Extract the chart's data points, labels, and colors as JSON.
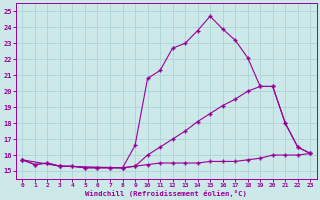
{
  "xlabel": "Windchill (Refroidissement éolien,°C)",
  "xlim": [
    -0.5,
    23.5
  ],
  "ylim": [
    14.5,
    25.5
  ],
  "xticks": [
    0,
    1,
    2,
    3,
    4,
    5,
    6,
    7,
    8,
    9,
    10,
    11,
    12,
    13,
    14,
    15,
    16,
    17,
    18,
    19,
    20,
    21,
    22,
    23
  ],
  "yticks": [
    15,
    16,
    17,
    18,
    19,
    20,
    21,
    22,
    23,
    24,
    25
  ],
  "bg_color": "#cce8e8",
  "line_color": "#990099",
  "grid_color": "#aad4d4",
  "line1_x": [
    0,
    1,
    2,
    3,
    4,
    5,
    6,
    7,
    8,
    9,
    10,
    11,
    12,
    13,
    14,
    15,
    16,
    17,
    18,
    19,
    20,
    21,
    22,
    23
  ],
  "line1_y": [
    15.7,
    15.4,
    15.5,
    15.3,
    15.3,
    15.2,
    15.2,
    15.2,
    15.2,
    15.3,
    15.4,
    15.5,
    15.5,
    15.5,
    15.5,
    15.6,
    15.6,
    15.6,
    15.7,
    15.8,
    16.0,
    16.0,
    16.0,
    16.1
  ],
  "line2_x": [
    0,
    1,
    2,
    3,
    4,
    5,
    6,
    7,
    8,
    9,
    10,
    11,
    12,
    13,
    14,
    15,
    16,
    17,
    18,
    19,
    20,
    21,
    22,
    23
  ],
  "line2_y": [
    15.7,
    15.4,
    15.5,
    15.3,
    15.3,
    15.2,
    15.2,
    15.2,
    15.2,
    15.3,
    16.0,
    16.5,
    17.0,
    17.5,
    18.1,
    18.6,
    19.1,
    19.5,
    20.0,
    20.3,
    20.3,
    18.0,
    16.5,
    16.1
  ],
  "line3_x": [
    0,
    3,
    8,
    9,
    10,
    11,
    12,
    13,
    14,
    15,
    16,
    17,
    18,
    19,
    20,
    21,
    22,
    23
  ],
  "line3_y": [
    15.7,
    15.3,
    15.2,
    16.6,
    20.8,
    21.3,
    22.7,
    23.0,
    23.8,
    24.7,
    23.9,
    23.2,
    22.1,
    20.3,
    20.3,
    18.0,
    16.5,
    16.1
  ]
}
